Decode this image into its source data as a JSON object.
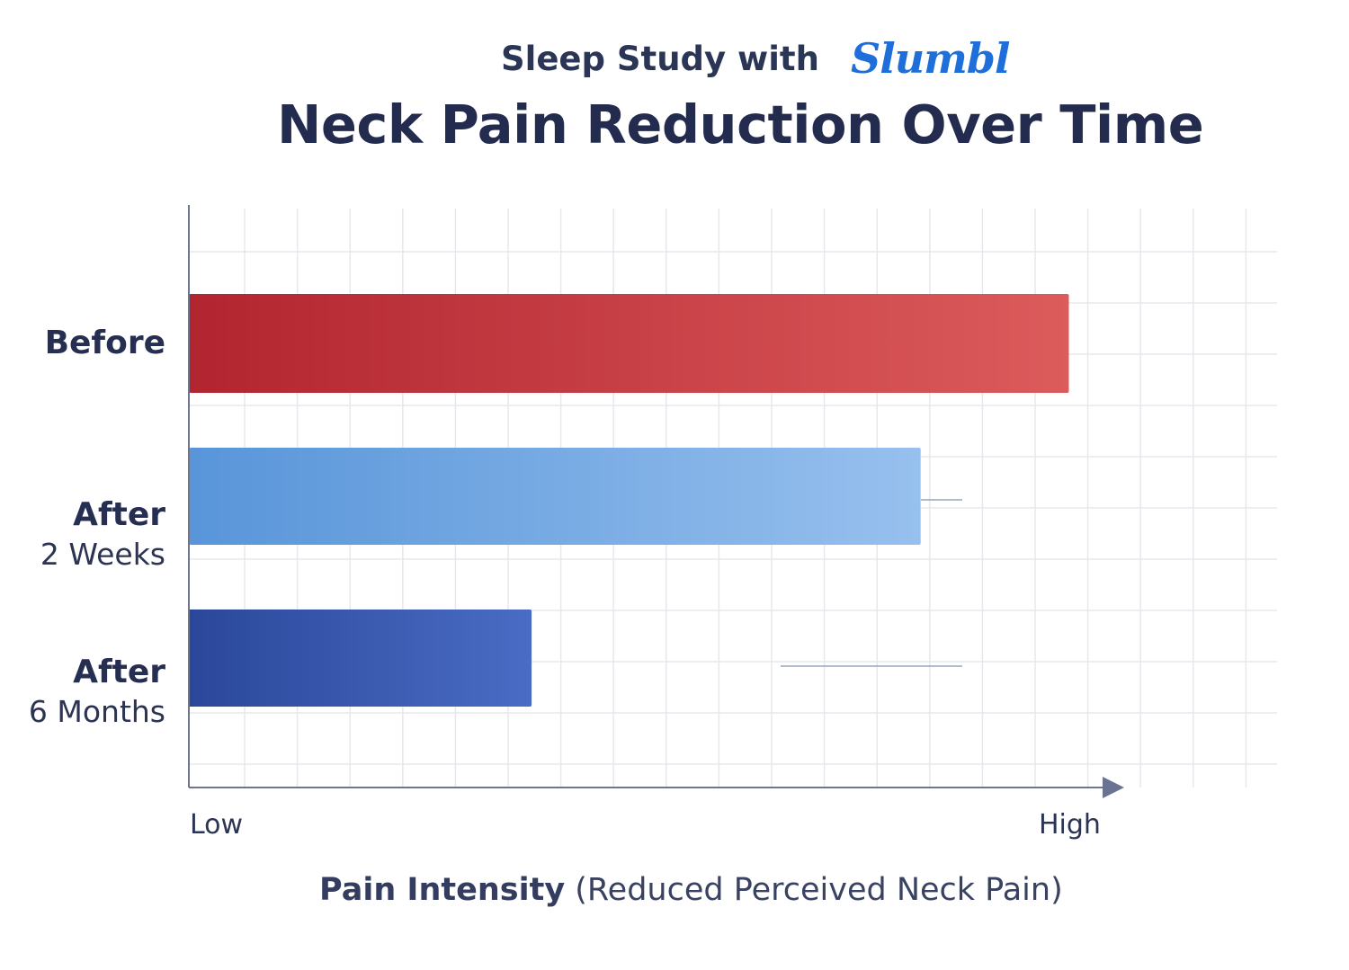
{
  "header": {
    "subtitle": "Sleep Study with",
    "brand": "Slumbl",
    "title": "Neck Pain Reduction Over Time"
  },
  "chart_data": {
    "type": "bar",
    "orientation": "horizontal",
    "categories": [
      {
        "main": "Before",
        "sub": ""
      },
      {
        "main": "After",
        "sub": "2 Weeks"
      },
      {
        "main": "After",
        "sub": "6 Months"
      }
    ],
    "values": [
      0.95,
      0.79,
      0.37
    ],
    "xlim": [
      0,
      1
    ],
    "x_tick_labels": {
      "low": "Low",
      "high": "High"
    },
    "xlabel_bold": "Pain Intensity",
    "xlabel_rest": "(Reduced Perceived Neck Pain)",
    "grid": true,
    "colors": [
      {
        "start": "#b22530",
        "end": "#dc5b5b"
      },
      {
        "start": "#5895d9",
        "end": "#97c0ee"
      },
      {
        "start": "#2a479a",
        "end": "#4a6cc4"
      }
    ],
    "axis_color": "#6e7590",
    "grid_color": "#e6e8ee"
  }
}
